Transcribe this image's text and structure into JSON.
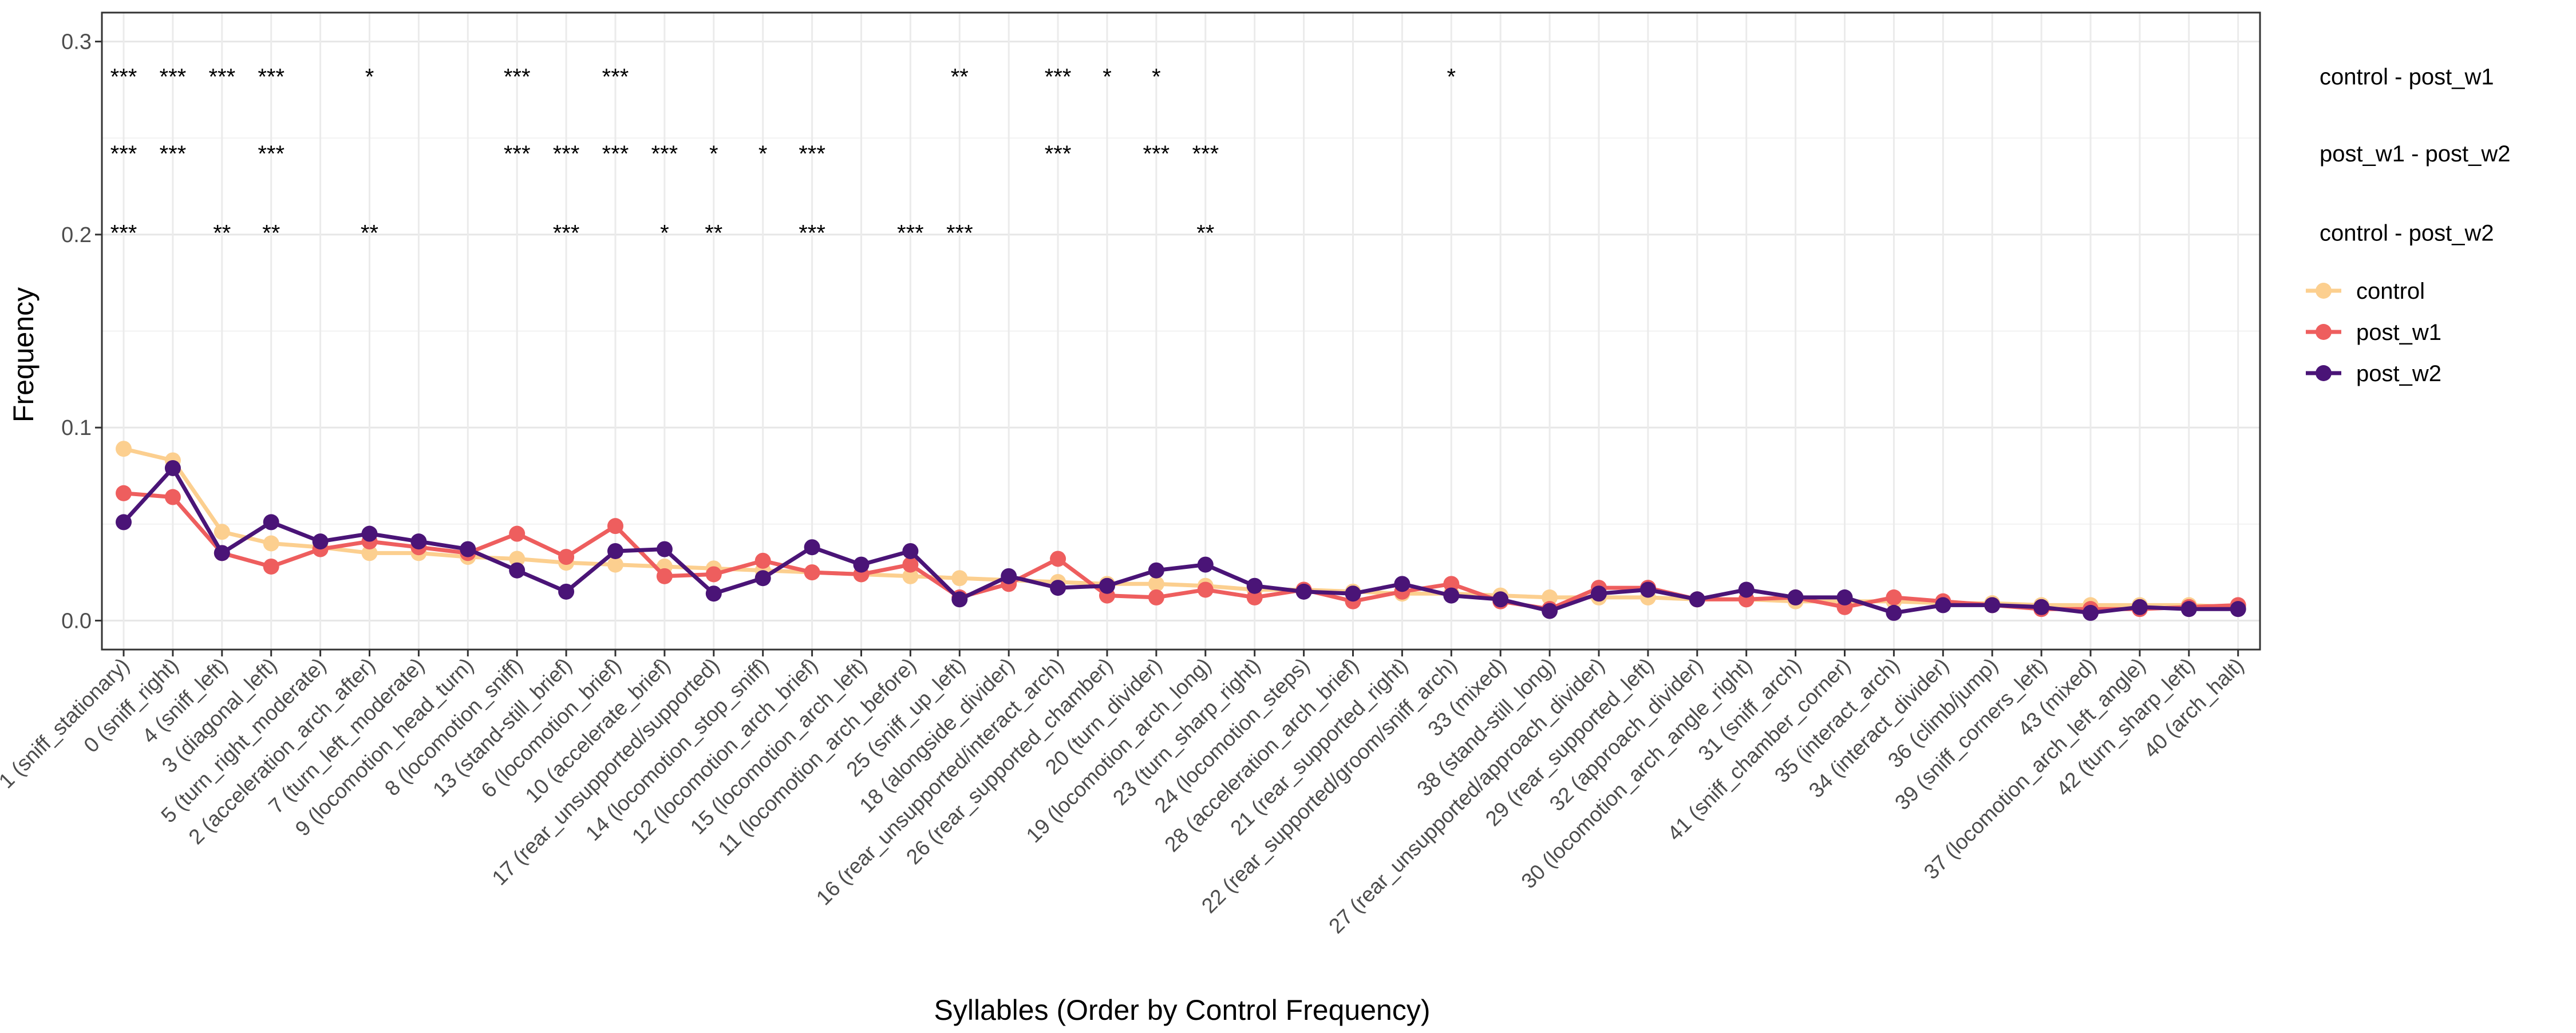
{
  "chart_data": {
    "type": "line",
    "xlabel": "Syllables (Order by Control Frequency)",
    "ylabel": "Frequency",
    "ylim": [
      -0.015,
      0.315
    ],
    "yticks": [
      0.0,
      0.1,
      0.2,
      0.3
    ],
    "ytick_labels": [
      "0.0",
      "0.1",
      "0.2",
      "0.3"
    ],
    "grid": true,
    "legend_position": "right",
    "categories": [
      "1 (sniff_stationary)",
      "0 (sniff_right)",
      "4 (sniff_left)",
      "3 (diagonal_left)",
      "5 (turn_right_moderate)",
      "2 (acceleration_arch_after)",
      "7 (turn_left_moderate)",
      "9 (locomotion_head_turn)",
      "8 (locomotion_sniff)",
      "13 (stand-still_brief)",
      "6 (locomotion_brief)",
      "10 (accelerate_brief)",
      "17 (rear_unsupported/supported)",
      "14 (locomotion_stop_sniff)",
      "12 (locomotion_arch_brief)",
      "15 (locomotion_arch_left)",
      "11 (locomotion_arch_before)",
      "25 (sniff_up_left)",
      "18 (alongside_divider)",
      "16 (rear_unsupported/interact_arch)",
      "26 (rear_supported_chamber)",
      "20 (turn_divider)",
      "19 (locomotion_arch_long)",
      "23 (turn_sharp_right)",
      "24 (locomotion_steps)",
      "28 (acceleration_arch_brief)",
      "21 (rear_supported_right)",
      "22 (rear_supported/groom/sniff_arch)",
      "33 (mixed)",
      "38 (stand-still_long)",
      "27 (rear_unsupported/approach_divider)",
      "29 (rear_supported_left)",
      "32 (approach_divider)",
      "30 (locomotion_arch_angle_right)",
      "31 (sniff_arch)",
      "41 (sniff_chamber_corner)",
      "35 (interact_arch)",
      "34 (interact_divider)",
      "36 (climb/jump)",
      "39 (sniff_corners_left)",
      "43 (mixed)",
      "37 (locomotion_arch_left_angle)",
      "42 (turn_sharp_left)",
      "40 (arch_halt)"
    ],
    "series": [
      {
        "name": "control",
        "color": "#FCCF8F",
        "values": [
          0.089,
          0.083,
          0.046,
          0.04,
          0.038,
          0.035,
          0.035,
          0.033,
          0.032,
          0.03,
          0.029,
          0.028,
          0.027,
          0.026,
          0.025,
          0.024,
          0.023,
          0.022,
          0.021,
          0.02,
          0.019,
          0.019,
          0.018,
          0.016,
          0.016,
          0.015,
          0.014,
          0.014,
          0.013,
          0.012,
          0.012,
          0.012,
          0.011,
          0.011,
          0.01,
          0.01,
          0.01,
          0.009,
          0.009,
          0.008,
          0.008,
          0.008,
          0.008,
          0.007
        ]
      },
      {
        "name": "post_w1",
        "color": "#EE5E5E",
        "values": [
          0.066,
          0.064,
          0.035,
          0.028,
          0.037,
          0.041,
          0.038,
          0.035,
          0.045,
          0.033,
          0.049,
          0.023,
          0.024,
          0.031,
          0.025,
          0.024,
          0.029,
          0.012,
          0.019,
          0.032,
          0.013,
          0.012,
          0.016,
          0.012,
          0.016,
          0.01,
          0.015,
          0.019,
          0.01,
          0.006,
          0.017,
          0.017,
          0.011,
          0.011,
          0.012,
          0.007,
          0.012,
          0.01,
          0.008,
          0.006,
          0.006,
          0.006,
          0.007,
          0.008
        ]
      },
      {
        "name": "post_w2",
        "color": "#4A1477",
        "values": [
          0.051,
          0.079,
          0.035,
          0.051,
          0.041,
          0.045,
          0.041,
          0.037,
          0.026,
          0.015,
          0.036,
          0.037,
          0.014,
          0.022,
          0.038,
          0.029,
          0.036,
          0.011,
          0.023,
          0.017,
          0.018,
          0.026,
          0.029,
          0.018,
          0.015,
          0.014,
          0.019,
          0.013,
          0.011,
          0.005,
          0.014,
          0.016,
          0.011,
          0.016,
          0.012,
          0.012,
          0.004,
          0.008,
          0.008,
          0.007,
          0.004,
          0.007,
          0.006,
          0.006
        ]
      }
    ],
    "comparisons": [
      {
        "label": "control - post_w1",
        "y": 0.282,
        "marks": [
          {
            "i": 0,
            "s": "***"
          },
          {
            "i": 1,
            "s": "***"
          },
          {
            "i": 2,
            "s": "***"
          },
          {
            "i": 3,
            "s": "***"
          },
          {
            "i": 5,
            "s": "*"
          },
          {
            "i": 8,
            "s": "***"
          },
          {
            "i": 10,
            "s": "***"
          },
          {
            "i": 17,
            "s": "**"
          },
          {
            "i": 19,
            "s": "***"
          },
          {
            "i": 20,
            "s": "*"
          },
          {
            "i": 21,
            "s": "*"
          },
          {
            "i": 27,
            "s": "*"
          }
        ]
      },
      {
        "label": "post_w1 - post_w2",
        "y": 0.242,
        "marks": [
          {
            "i": 0,
            "s": "***"
          },
          {
            "i": 1,
            "s": "***"
          },
          {
            "i": 3,
            "s": "***"
          },
          {
            "i": 8,
            "s": "***"
          },
          {
            "i": 9,
            "s": "***"
          },
          {
            "i": 10,
            "s": "***"
          },
          {
            "i": 11,
            "s": "***"
          },
          {
            "i": 12,
            "s": "*"
          },
          {
            "i": 13,
            "s": "*"
          },
          {
            "i": 14,
            "s": "***"
          },
          {
            "i": 19,
            "s": "***"
          },
          {
            "i": 21,
            "s": "***"
          },
          {
            "i": 22,
            "s": "***"
          }
        ]
      },
      {
        "label": "control - post_w2",
        "y": 0.201,
        "marks": [
          {
            "i": 0,
            "s": "***"
          },
          {
            "i": 2,
            "s": "**"
          },
          {
            "i": 3,
            "s": "**"
          },
          {
            "i": 5,
            "s": "**"
          },
          {
            "i": 9,
            "s": "***"
          },
          {
            "i": 11,
            "s": "*"
          },
          {
            "i": 12,
            "s": "**"
          },
          {
            "i": 14,
            "s": "***"
          },
          {
            "i": 16,
            "s": "***"
          },
          {
            "i": 17,
            "s": "***"
          },
          {
            "i": 22,
            "s": "**"
          }
        ]
      }
    ]
  }
}
